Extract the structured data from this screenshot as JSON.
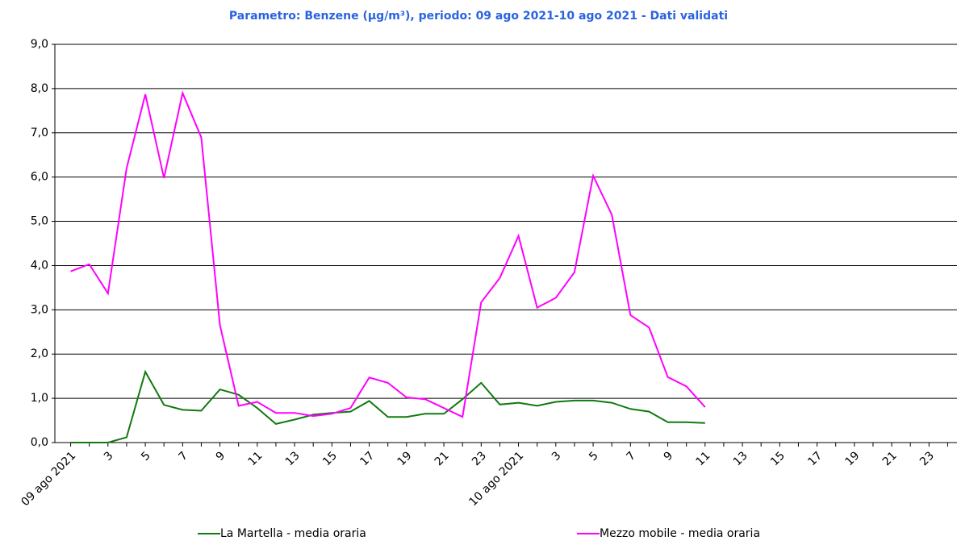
{
  "chart_data": {
    "type": "line",
    "title": "Parametro: Benzene (µg/m³), periodo: 09 ago 2021-10 ago 2021 - Dati validati",
    "categories": [
      "09 ago 2021",
      null,
      "3",
      null,
      "5",
      null,
      "7",
      null,
      "9",
      null,
      "11",
      null,
      "13",
      null,
      "15",
      null,
      "17",
      null,
      "19",
      null,
      "21",
      null,
      "23",
      null,
      "10 ago 2021",
      null,
      "3",
      null,
      "5",
      null,
      "7",
      null,
      "9",
      null,
      "11",
      null,
      "13",
      null,
      "15",
      null,
      "17",
      null,
      "19",
      null,
      "21",
      null,
      "23",
      null
    ],
    "series": [
      {
        "name": "La Martella - media oraria",
        "color": "#107a10",
        "values": [
          0.0,
          0.0,
          0.0,
          0.12,
          1.6,
          0.85,
          0.74,
          0.72,
          1.2,
          1.08,
          0.78,
          0.42,
          0.52,
          0.63,
          0.67,
          0.7,
          0.94,
          0.58,
          0.58,
          0.65,
          0.65,
          0.98,
          1.35,
          0.86,
          0.9,
          0.83,
          0.92,
          0.95,
          0.95,
          0.9,
          0.76,
          0.7,
          0.46,
          0.46,
          0.44,
          null,
          null,
          null,
          null,
          null,
          null,
          null,
          null,
          null,
          null,
          null,
          null,
          null
        ]
      },
      {
        "name": "Mezzo mobile - media oraria",
        "color": "#ff00ff",
        "values": [
          3.87,
          4.03,
          3.37,
          6.2,
          7.87,
          5.98,
          7.9,
          6.9,
          2.65,
          0.83,
          0.92,
          0.67,
          0.67,
          0.6,
          0.65,
          0.78,
          1.47,
          1.35,
          1.02,
          0.98,
          0.78,
          0.58,
          3.17,
          3.72,
          4.67,
          3.05,
          3.27,
          3.85,
          6.03,
          5.15,
          2.88,
          2.6,
          1.48,
          1.27,
          0.8,
          null,
          null,
          null,
          null,
          null,
          null,
          null,
          null,
          null,
          null,
          null,
          null,
          null
        ]
      }
    ],
    "ylim": [
      0,
      9
    ],
    "yticks": [
      {
        "value": 0,
        "label": "0,0"
      },
      {
        "value": 1,
        "label": "1,0"
      },
      {
        "value": 2,
        "label": "2,0"
      },
      {
        "value": 3,
        "label": "3,0"
      },
      {
        "value": 4,
        "label": "4,0"
      },
      {
        "value": 5,
        "label": "5,0"
      },
      {
        "value": 6,
        "label": "6,0"
      },
      {
        "value": 7,
        "label": "7,0"
      },
      {
        "value": 8,
        "label": "8,0"
      },
      {
        "value": 9,
        "label": "9,0"
      }
    ],
    "grid": true,
    "legend": "bottom"
  }
}
